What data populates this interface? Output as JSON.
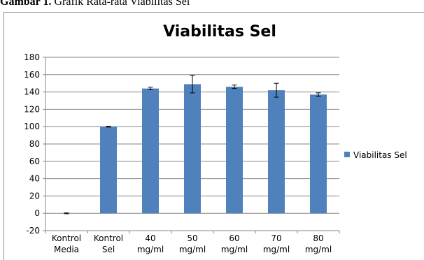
{
  "caption": {
    "label": "Gambar 1.",
    "text": "Grafik Rata-rata Viabilitas Sel"
  },
  "colors": {
    "bar": "#4f81bd",
    "grid": "#868686",
    "axis": "#868686",
    "errorbar": "#000000"
  },
  "chart_data": {
    "type": "bar",
    "title": "Viabilitas Sel",
    "xlabel": "",
    "ylabel": "",
    "ylim": [
      -20,
      180
    ],
    "yticks": [
      -20,
      0,
      20,
      40,
      60,
      80,
      100,
      120,
      140,
      160,
      180
    ],
    "grid": true,
    "legend_position": "right",
    "categories": [
      [
        "Kontrol",
        "Media"
      ],
      [
        "Kontrol",
        "Sel"
      ],
      [
        "40",
        "mg/ml"
      ],
      [
        "50",
        "mg/ml"
      ],
      [
        "60",
        "mg/ml"
      ],
      [
        "70",
        "mg/ml"
      ],
      [
        "80",
        "mg/ml"
      ]
    ],
    "series": [
      {
        "name": "Viabilitas Sel",
        "values": [
          0,
          100,
          144,
          149,
          146,
          142,
          137
        ],
        "errors": [
          0.5,
          0.5,
          1.5,
          10,
          2,
          8,
          2
        ]
      }
    ]
  }
}
